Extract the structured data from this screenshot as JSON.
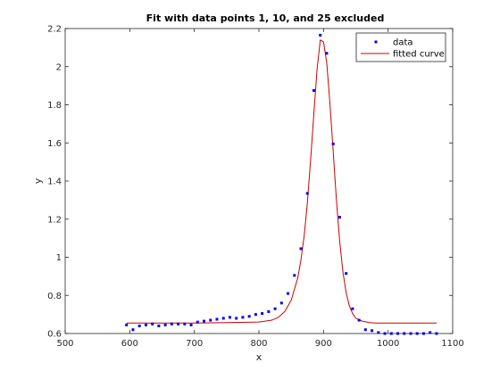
{
  "chart_data": {
    "type": "scatter",
    "title": "Fit with data points 1, 10, and 25 excluded",
    "xlabel": "x",
    "ylabel": "y",
    "xlim": [
      500,
      1100
    ],
    "ylim": [
      0.6,
      2.2
    ],
    "xticks": [
      500,
      600,
      700,
      800,
      900,
      1000,
      1100
    ],
    "yticks": [
      0.6,
      0.8,
      1,
      1.2,
      1.4,
      1.6,
      1.8,
      2,
      2.2
    ],
    "xtick_labels": [
      "500",
      "600",
      "700",
      "800",
      "900",
      "1000",
      "1100"
    ],
    "ytick_labels": [
      "0.6",
      "0.8",
      "1",
      "1.2",
      "1.4",
      "1.6",
      "1.8",
      "2",
      "2.2"
    ],
    "grid": false,
    "legend_position": "top-right",
    "series": [
      {
        "name": "data",
        "kind": "scatter",
        "color": "#0000ff",
        "x": [
          595,
          605,
          615,
          625,
          635,
          645,
          655,
          665,
          675,
          685,
          695,
          705,
          715,
          725,
          735,
          745,
          755,
          765,
          775,
          785,
          795,
          805,
          815,
          825,
          835,
          845,
          855,
          865,
          875,
          885,
          895,
          905,
          915,
          925,
          935,
          945,
          955,
          965,
          975,
          985,
          995,
          1005,
          1015,
          1025,
          1035,
          1045,
          1055,
          1065,
          1075
        ],
        "y": [
          0.645,
          0.62,
          0.64,
          0.645,
          0.65,
          0.64,
          0.645,
          0.65,
          0.65,
          0.65,
          0.645,
          0.66,
          0.665,
          0.67,
          0.675,
          0.68,
          0.685,
          0.68,
          0.685,
          0.69,
          0.7,
          0.705,
          0.715,
          0.73,
          0.76,
          0.81,
          0.905,
          1.045,
          1.335,
          1.875,
          2.165,
          2.07,
          1.595,
          1.21,
          0.915,
          0.73,
          0.67,
          0.62,
          0.615,
          0.605,
          0.6,
          0.6,
          0.6,
          0.6,
          0.6,
          0.6,
          0.6,
          0.605,
          0.6
        ]
      },
      {
        "name": "fitted curve",
        "kind": "line",
        "color": "#cc0000",
        "x": [
          595,
          700,
          800,
          810,
          820,
          830,
          840,
          850,
          860,
          865,
          870,
          875,
          880,
          885,
          890,
          895,
          900,
          905,
          910,
          915,
          920,
          925,
          930,
          935,
          940,
          945,
          950,
          960,
          970,
          980,
          1000,
          1075
        ],
        "y": [
          0.655,
          0.655,
          0.66,
          0.665,
          0.67,
          0.685,
          0.715,
          0.775,
          0.89,
          0.985,
          1.11,
          1.285,
          1.51,
          1.75,
          1.985,
          2.14,
          2.13,
          2.02,
          1.805,
          1.555,
          1.3,
          1.085,
          0.925,
          0.815,
          0.745,
          0.705,
          0.68,
          0.665,
          0.658,
          0.655,
          0.655,
          0.655
        ]
      }
    ]
  }
}
